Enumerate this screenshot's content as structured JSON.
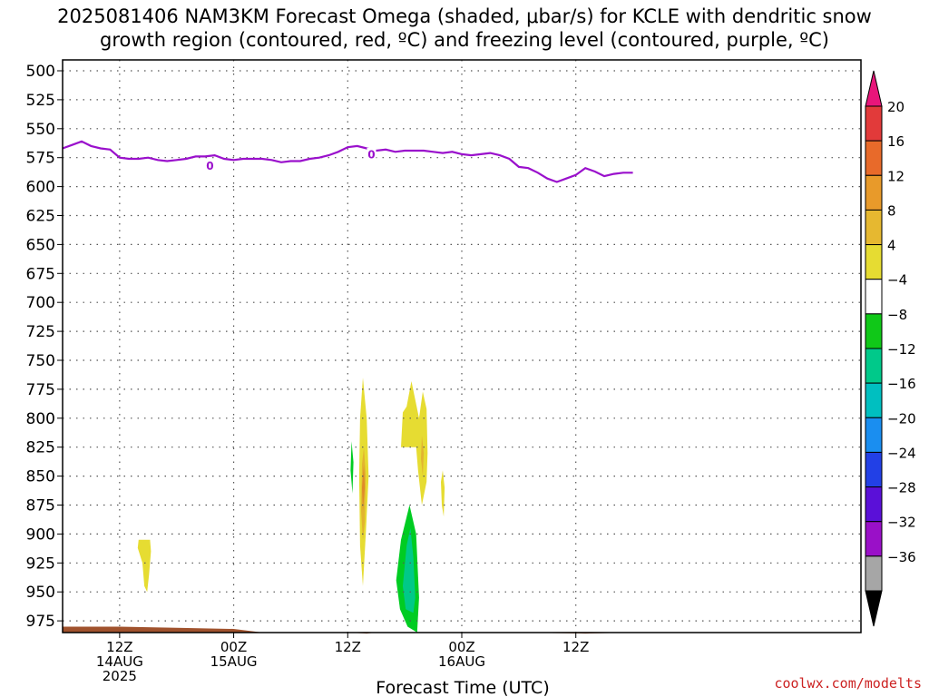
{
  "title": {
    "line1": "2025081406 NAM3KM Forecast Omega (shaded, μbar/s) for KCLE with dendritic snow",
    "line2": "growth region (contoured, red, ºC) and freezing level (contoured, purple, ºC)"
  },
  "credit": "coolwx.com/modelts",
  "colors": {
    "freezing_level": "#9a10cc",
    "ground": "#a0522d",
    "grid": "#555555"
  },
  "chart_data": {
    "type": "contour-timeseries",
    "xlabel": "Forecast Time (UTC)",
    "x_hours": [
      0,
      84
    ],
    "ylim": [
      500,
      1000
    ],
    "y_ticks": [
      500,
      525,
      550,
      575,
      600,
      625,
      650,
      675,
      700,
      725,
      750,
      775,
      800,
      825,
      850,
      875,
      900,
      925,
      950,
      975
    ],
    "x_ticks": [
      {
        "hour": 6,
        "lines": [
          "12Z",
          "14AUG",
          "2025"
        ]
      },
      {
        "hour": 18,
        "lines": [
          "00Z",
          "15AUG"
        ]
      },
      {
        "hour": 30,
        "lines": [
          "12Z"
        ]
      },
      {
        "hour": 42,
        "lines": [
          "00Z",
          "16AUG"
        ]
      },
      {
        "hour": 54,
        "lines": [
          "12Z"
        ]
      }
    ],
    "freezing_level": {
      "label": "0",
      "label_positions": [
        [
          15.5,
          582
        ],
        [
          32.5,
          572
        ]
      ],
      "hours": [
        0,
        1,
        2,
        3,
        4,
        5,
        6,
        7,
        8,
        9,
        10,
        11,
        12,
        13,
        14,
        15,
        16,
        17,
        18,
        19,
        20,
        21,
        22,
        23,
        24,
        25,
        26,
        27,
        28,
        29,
        30,
        31,
        32,
        33,
        34,
        35,
        36,
        37,
        38,
        39,
        40,
        41,
        42,
        43,
        44,
        45,
        46,
        47,
        48,
        49,
        50,
        51,
        52,
        53,
        54,
        55,
        56,
        57,
        58,
        59,
        60
      ],
      "pressure": [
        567,
        564,
        561,
        565,
        567,
        568,
        575,
        576,
        576,
        575,
        577,
        578,
        577,
        576,
        574,
        574,
        573,
        576,
        577,
        576,
        576,
        576,
        577,
        579,
        578,
        578,
        576,
        575,
        573,
        570,
        566,
        565,
        567,
        569,
        568,
        570,
        569,
        569,
        569,
        570,
        571,
        570,
        572,
        573,
        572,
        571,
        573,
        576,
        583,
        584,
        588,
        593,
        596,
        593,
        590,
        584,
        587,
        591,
        589,
        588,
        588
      ]
    },
    "omega_regions": [
      {
        "value": 4,
        "color": "#e6dc32",
        "points": [
          [
            8.0,
            905
          ],
          [
            9.2,
            905
          ],
          [
            9.3,
            915
          ],
          [
            9.1,
            935
          ],
          [
            8.9,
            950
          ],
          [
            8.6,
            945
          ],
          [
            8.4,
            925
          ],
          [
            7.9,
            912
          ]
        ]
      },
      {
        "value": 4,
        "color": "#e6dc32",
        "points": [
          [
            31.6,
            765
          ],
          [
            32.0,
            800
          ],
          [
            32.2,
            850
          ],
          [
            31.9,
            900
          ],
          [
            31.6,
            945
          ],
          [
            31.3,
            910
          ],
          [
            31.2,
            850
          ],
          [
            31.3,
            800
          ]
        ]
      },
      {
        "value": 8,
        "color": "#e2b430",
        "points": [
          [
            31.7,
            825
          ],
          [
            31.9,
            850
          ],
          [
            31.8,
            890
          ],
          [
            31.6,
            905
          ],
          [
            31.4,
            880
          ],
          [
            31.5,
            840
          ]
        ]
      },
      {
        "value": 12,
        "color": "#e08a2a",
        "points": [
          [
            31.7,
            840
          ],
          [
            31.8,
            860
          ],
          [
            31.6,
            880
          ],
          [
            31.5,
            860
          ]
        ]
      },
      {
        "value": 4,
        "color": "#e6dc32",
        "points": [
          [
            36.2,
            790
          ],
          [
            36.7,
            768
          ],
          [
            37.5,
            800
          ],
          [
            37.9,
            777
          ],
          [
            38.3,
            792
          ],
          [
            38.4,
            830
          ],
          [
            38.3,
            855
          ],
          [
            37.8,
            875
          ],
          [
            37.4,
            845
          ],
          [
            37.2,
            825
          ],
          [
            35.6,
            825
          ],
          [
            35.8,
            795
          ]
        ]
      },
      {
        "value": 8,
        "color": "#e2b430",
        "points": [
          [
            37.8,
            815
          ],
          [
            38.0,
            830
          ],
          [
            37.9,
            850
          ],
          [
            37.7,
            835
          ]
        ]
      },
      {
        "value": 4,
        "color": "#e6dc32",
        "points": [
          [
            40.0,
            845
          ],
          [
            40.2,
            860
          ],
          [
            40.1,
            885
          ],
          [
            39.9,
            875
          ],
          [
            39.8,
            855
          ]
        ]
      },
      {
        "value": -4,
        "color": "#00cc22",
        "points": [
          [
            30.4,
            820
          ],
          [
            30.6,
            838
          ],
          [
            30.5,
            865
          ],
          [
            30.3,
            845
          ]
        ]
      },
      {
        "value": -4,
        "color": "#00cc22",
        "points": [
          [
            36.5,
            875
          ],
          [
            37.2,
            900
          ],
          [
            37.5,
            955
          ],
          [
            37.3,
            985
          ],
          [
            36.3,
            980
          ],
          [
            35.5,
            965
          ],
          [
            35.1,
            940
          ],
          [
            35.6,
            905
          ]
        ]
      },
      {
        "value": -8,
        "color": "#00c988",
        "points": [
          [
            36.6,
            895
          ],
          [
            36.9,
            920
          ],
          [
            37.1,
            955
          ],
          [
            36.9,
            968
          ],
          [
            36.1,
            965
          ],
          [
            35.8,
            945
          ],
          [
            36.2,
            910
          ]
        ]
      }
    ],
    "ground": [
      [
        0,
        980
      ],
      [
        6,
        980
      ],
      [
        12,
        981
      ],
      [
        18,
        982
      ],
      [
        21,
        985
      ],
      [
        30,
        985
      ],
      [
        32,
        986
      ],
      [
        33,
        985
      ],
      [
        48,
        985
      ],
      [
        55,
        986
      ],
      [
        60,
        985
      ],
      [
        84,
        985
      ]
    ],
    "colorbar": {
      "labels": [
        "20",
        "16",
        "12",
        "8",
        "4",
        "−4",
        "−8",
        "−12",
        "−16",
        "−20",
        "−24",
        "−28",
        "−32",
        "−36"
      ],
      "colors": [
        "#e23a3a",
        "#e86a2a",
        "#e89a2a",
        "#e6b830",
        "#e6dc32",
        "#ffffff",
        "#10c818",
        "#00c98a",
        "#00bfc0",
        "#1a8ef0",
        "#2240e6",
        "#5a10d8",
        "#9a10c8",
        "#a6a6a6"
      ],
      "top_color": "#e8157a",
      "bottom_color": "#000000"
    }
  }
}
